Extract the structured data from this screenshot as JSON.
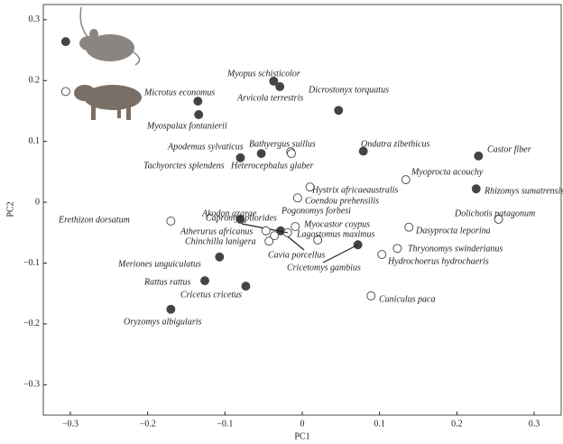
{
  "chart_data": {
    "type": "scatter",
    "xlabel": "PC1",
    "ylabel": "PC2",
    "xlim": [
      -0.335,
      0.335
    ],
    "ylim": [
      -0.35,
      0.325
    ],
    "xticks": [
      {
        "value": -0.3,
        "label": "−0.3"
      },
      {
        "value": -0.2,
        "label": "−0.2"
      },
      {
        "value": -0.1,
        "label": "−0.1"
      },
      0,
      0.1,
      0.2,
      0.3
    ],
    "yticks": [
      {
        "value": -0.3,
        "label": "−0.3"
      },
      {
        "value": -0.2,
        "label": "−0.2"
      },
      {
        "value": -0.1,
        "label": "−0.1"
      },
      0,
      0.1,
      0.2,
      0.3
    ],
    "series": [
      {
        "color": "#444444",
        "filled": true,
        "labels": [
          null,
          "Microtus economus",
          "Myospalax fontanierii",
          "Myopus schisticolor",
          "Arvicola terrestris",
          "Dicrostonyx torquatus",
          "Tachyorctes splendens",
          "Apodemus sylvaticus",
          "Ondatra zibethicus",
          "Castor fiber",
          "Rhizomys sumatrensis",
          "Akodon azarae",
          "Cavia porcellus",
          "Meriones unguiculatus",
          "Cricetomys gambius",
          "Rattus rattus",
          "Cricetus cricetus",
          "Oryzomys albigularis"
        ],
        "x": [
          -0.306,
          -0.135,
          -0.134,
          -0.037,
          -0.029,
          0.047,
          -0.08,
          -0.053,
          0.079,
          0.228,
          0.225,
          -0.08,
          -0.028,
          -0.107,
          0.072,
          -0.126,
          -0.073,
          -0.17
        ],
        "values": [
          0.264,
          0.166,
          0.144,
          0.199,
          0.19,
          0.151,
          0.073,
          0.08,
          0.084,
          0.076,
          0.022,
          -0.028,
          -0.047,
          -0.09,
          -0.07,
          -0.129,
          -0.138,
          -0.176
        ]
      },
      {
        "color": "#444444",
        "filled": false,
        "labels": [
          null,
          "Bathyergus suillus",
          "Heterocephalus glaber",
          "Hystrix africaeaustralis",
          "Coendou prehensilis",
          "Myoprocta acouchy",
          "Dolichotis patagonum",
          "Erethizon dorsatum",
          "Capromys pilorides",
          "Myocastor coypus",
          "Atherurus africanus",
          "Chinchilla lanigera",
          "Pogonomys forbesi",
          "Lagostomus maximus",
          "Dasyprocta leporina",
          "Thryonomys swinderianus",
          "Hydrochoerus hydrochaeris",
          "Cuniculus paca"
        ],
        "x": [
          -0.306,
          -0.015,
          -0.014,
          0.01,
          -0.006,
          0.134,
          0.254,
          -0.17,
          -0.019,
          -0.009,
          -0.047,
          -0.043,
          -0.036,
          0.02,
          0.138,
          0.123,
          0.103,
          0.089
        ],
        "values": [
          0.182,
          0.083,
          0.08,
          0.025,
          0.007,
          0.037,
          -0.028,
          -0.031,
          -0.05,
          -0.04,
          -0.047,
          -0.064,
          -0.055,
          -0.062,
          -0.041,
          -0.076,
          -0.086,
          -0.154
        ]
      }
    ]
  }
}
